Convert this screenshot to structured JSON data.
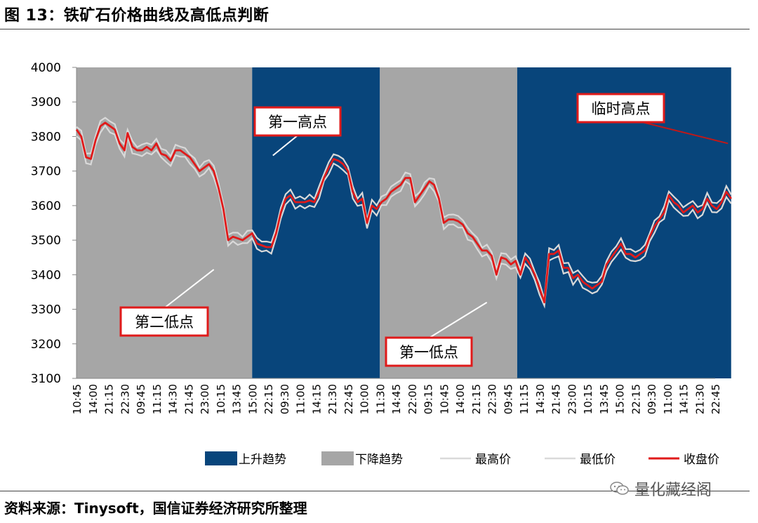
{
  "figure": {
    "title": "图 13：铁矿石价格曲线及高低点判断",
    "source": "资料来源：Tinysoft，国信证券经济研究所整理",
    "watermark": "量化藏经阁",
    "watermark_icon": "wechat-icon"
  },
  "colors": {
    "uptrend": "#08457b",
    "downtrend": "#a6a6a6",
    "high": "#d9d9d9",
    "low": "#d9d9d9",
    "close": "#e01a1a",
    "annotation_border": "#e01a1a"
  },
  "chart_data": {
    "type": "line",
    "title": "",
    "xlabel": "",
    "ylabel": "",
    "ylim": [
      3100,
      4000
    ],
    "yticks": [
      3100,
      3200,
      3300,
      3400,
      3500,
      3600,
      3700,
      3800,
      3900,
      4000
    ],
    "x_tick_labels": [
      "10:45",
      "14:00",
      "21:15",
      "22:30",
      "09:45",
      "11:15",
      "14:30",
      "21:45",
      "23:00",
      "10:15",
      "13:45",
      "15:00",
      "22:15",
      "09:30",
      "11:00",
      "14:15",
      "21:30",
      "22:45",
      "10:00",
      "11:30",
      "14:45",
      "22:00",
      "09:15",
      "10:45",
      "14:00",
      "21:15",
      "22:30",
      "09:45",
      "11:15",
      "14:30",
      "21:45",
      "23:00",
      "10:15",
      "13:45",
      "15:00",
      "22:15",
      "09:30",
      "11:00",
      "14:15",
      "21:30",
      "22:45"
    ],
    "regimes": [
      {
        "label": "下降趋势",
        "trend": "down",
        "start": 0,
        "end": 11
      },
      {
        "label": "上升趋势",
        "trend": "up",
        "start": 11,
        "end": 19
      },
      {
        "label": "下降趋势",
        "trend": "down",
        "start": 19,
        "end": 27.6
      },
      {
        "label": "上升趋势",
        "trend": "up",
        "start": 27.6,
        "end": 41
      }
    ],
    "close_points": [
      [
        0,
        3820
      ],
      [
        0.3,
        3800
      ],
      [
        0.6,
        3740
      ],
      [
        0.9,
        3735
      ],
      [
        1.2,
        3790
      ],
      [
        1.5,
        3830
      ],
      [
        1.8,
        3840
      ],
      [
        2.1,
        3830
      ],
      [
        2.4,
        3820
      ],
      [
        2.7,
        3780
      ],
      [
        3,
        3760
      ],
      [
        3.2,
        3810
      ],
      [
        3.5,
        3770
      ],
      [
        3.8,
        3760
      ],
      [
        4.1,
        3760
      ],
      [
        4.4,
        3770
      ],
      [
        4.7,
        3760
      ],
      [
        5,
        3780
      ],
      [
        5.3,
        3750
      ],
      [
        5.6,
        3745
      ],
      [
        5.9,
        3730
      ],
      [
        6.2,
        3760
      ],
      [
        6.5,
        3760
      ],
      [
        6.8,
        3750
      ],
      [
        7.1,
        3740
      ],
      [
        7.4,
        3720
      ],
      [
        7.7,
        3700
      ],
      [
        8,
        3710
      ],
      [
        8.3,
        3720
      ],
      [
        8.6,
        3700
      ],
      [
        8.9,
        3650
      ],
      [
        9.2,
        3590
      ],
      [
        9.5,
        3500
      ],
      [
        9.8,
        3510
      ],
      [
        10.1,
        3505
      ],
      [
        10.4,
        3500
      ],
      [
        10.7,
        3510
      ],
      [
        11,
        3520
      ],
      [
        11.3,
        3490
      ],
      [
        11.6,
        3485
      ],
      [
        11.9,
        3480
      ],
      [
        12.2,
        3480
      ],
      [
        12.5,
        3520
      ],
      [
        12.8,
        3580
      ],
      [
        13.1,
        3620
      ],
      [
        13.4,
        3630
      ],
      [
        13.7,
        3610
      ],
      [
        14,
        3610
      ],
      [
        14.3,
        3610
      ],
      [
        14.6,
        3615
      ],
      [
        14.9,
        3610
      ],
      [
        15.2,
        3640
      ],
      [
        15.5,
        3680
      ],
      [
        15.8,
        3710
      ],
      [
        16.1,
        3735
      ],
      [
        16.4,
        3730
      ],
      [
        16.7,
        3720
      ],
      [
        17,
        3700
      ],
      [
        17.3,
        3640
      ],
      [
        17.6,
        3610
      ],
      [
        17.9,
        3620
      ],
      [
        18.2,
        3550
      ],
      [
        18.5,
        3600
      ],
      [
        18.8,
        3590
      ],
      [
        19.1,
        3610
      ],
      [
        19.4,
        3620
      ],
      [
        19.7,
        3640
      ],
      [
        20,
        3650
      ],
      [
        20.3,
        3660
      ],
      [
        20.6,
        3680
      ],
      [
        20.9,
        3680
      ],
      [
        21.2,
        3610
      ],
      [
        21.5,
        3630
      ],
      [
        21.8,
        3650
      ],
      [
        22.1,
        3670
      ],
      [
        22.4,
        3660
      ],
      [
        22.7,
        3620
      ],
      [
        23,
        3550
      ],
      [
        23.3,
        3560
      ],
      [
        23.6,
        3560
      ],
      [
        23.9,
        3555
      ],
      [
        24.2,
        3545
      ],
      [
        24.5,
        3520
      ],
      [
        24.8,
        3510
      ],
      [
        25.1,
        3490
      ],
      [
        25.4,
        3470
      ],
      [
        25.7,
        3470
      ],
      [
        26,
        3455
      ],
      [
        26.3,
        3400
      ],
      [
        26.6,
        3450
      ],
      [
        26.9,
        3445
      ],
      [
        27.2,
        3430
      ],
      [
        27.5,
        3440
      ],
      [
        27.8,
        3400
      ],
      [
        28.1,
        3450
      ],
      [
        28.4,
        3430
      ],
      [
        28.7,
        3400
      ],
      [
        29,
        3360
      ],
      [
        29.3,
        3320
      ],
      [
        29.6,
        3460
      ],
      [
        29.9,
        3460
      ],
      [
        30.2,
        3470
      ],
      [
        30.5,
        3420
      ],
      [
        30.8,
        3420
      ],
      [
        31.1,
        3390
      ],
      [
        31.4,
        3400
      ],
      [
        31.7,
        3380
      ],
      [
        32,
        3370
      ],
      [
        32.3,
        3360
      ],
      [
        32.6,
        3370
      ],
      [
        32.9,
        3380
      ],
      [
        33.2,
        3430
      ],
      [
        33.5,
        3450
      ],
      [
        33.8,
        3470
      ],
      [
        34.1,
        3490
      ],
      [
        34.4,
        3460
      ],
      [
        34.7,
        3460
      ],
      [
        35,
        3450
      ],
      [
        35.3,
        3460
      ],
      [
        35.6,
        3470
      ],
      [
        35.9,
        3510
      ],
      [
        36.2,
        3540
      ],
      [
        36.5,
        3560
      ],
      [
        36.8,
        3580
      ],
      [
        37.1,
        3630
      ],
      [
        37.4,
        3610
      ],
      [
        37.7,
        3600
      ],
      [
        38,
        3580
      ],
      [
        38.3,
        3590
      ],
      [
        38.6,
        3600
      ],
      [
        38.9,
        3580
      ],
      [
        39.2,
        3590
      ],
      [
        39.5,
        3620
      ],
      [
        39.8,
        3600
      ],
      [
        40.1,
        3590
      ],
      [
        40.4,
        3610
      ],
      [
        40.7,
        3640
      ],
      [
        41,
        3620
      ]
    ],
    "legend": [
      {
        "label": "上升趋势",
        "kind": "box",
        "color_key": "uptrend"
      },
      {
        "label": "下降趋势",
        "kind": "box",
        "color_key": "downtrend"
      },
      {
        "label": "最高价",
        "kind": "line",
        "color_key": "high"
      },
      {
        "label": "最低价",
        "kind": "line",
        "color_key": "low"
      },
      {
        "label": "收盘价",
        "kind": "line",
        "color_key": "close"
      }
    ],
    "annotations": [
      {
        "label": "第二低点",
        "target": [
          8.6,
          3415
        ]
      },
      {
        "label": "第一高点",
        "target": [
          12.3,
          3745
        ]
      },
      {
        "label": "第一低点",
        "target": [
          25.7,
          3320
        ]
      },
      {
        "label": "临时高点",
        "target": [
          40.8,
          3780
        ]
      }
    ]
  }
}
